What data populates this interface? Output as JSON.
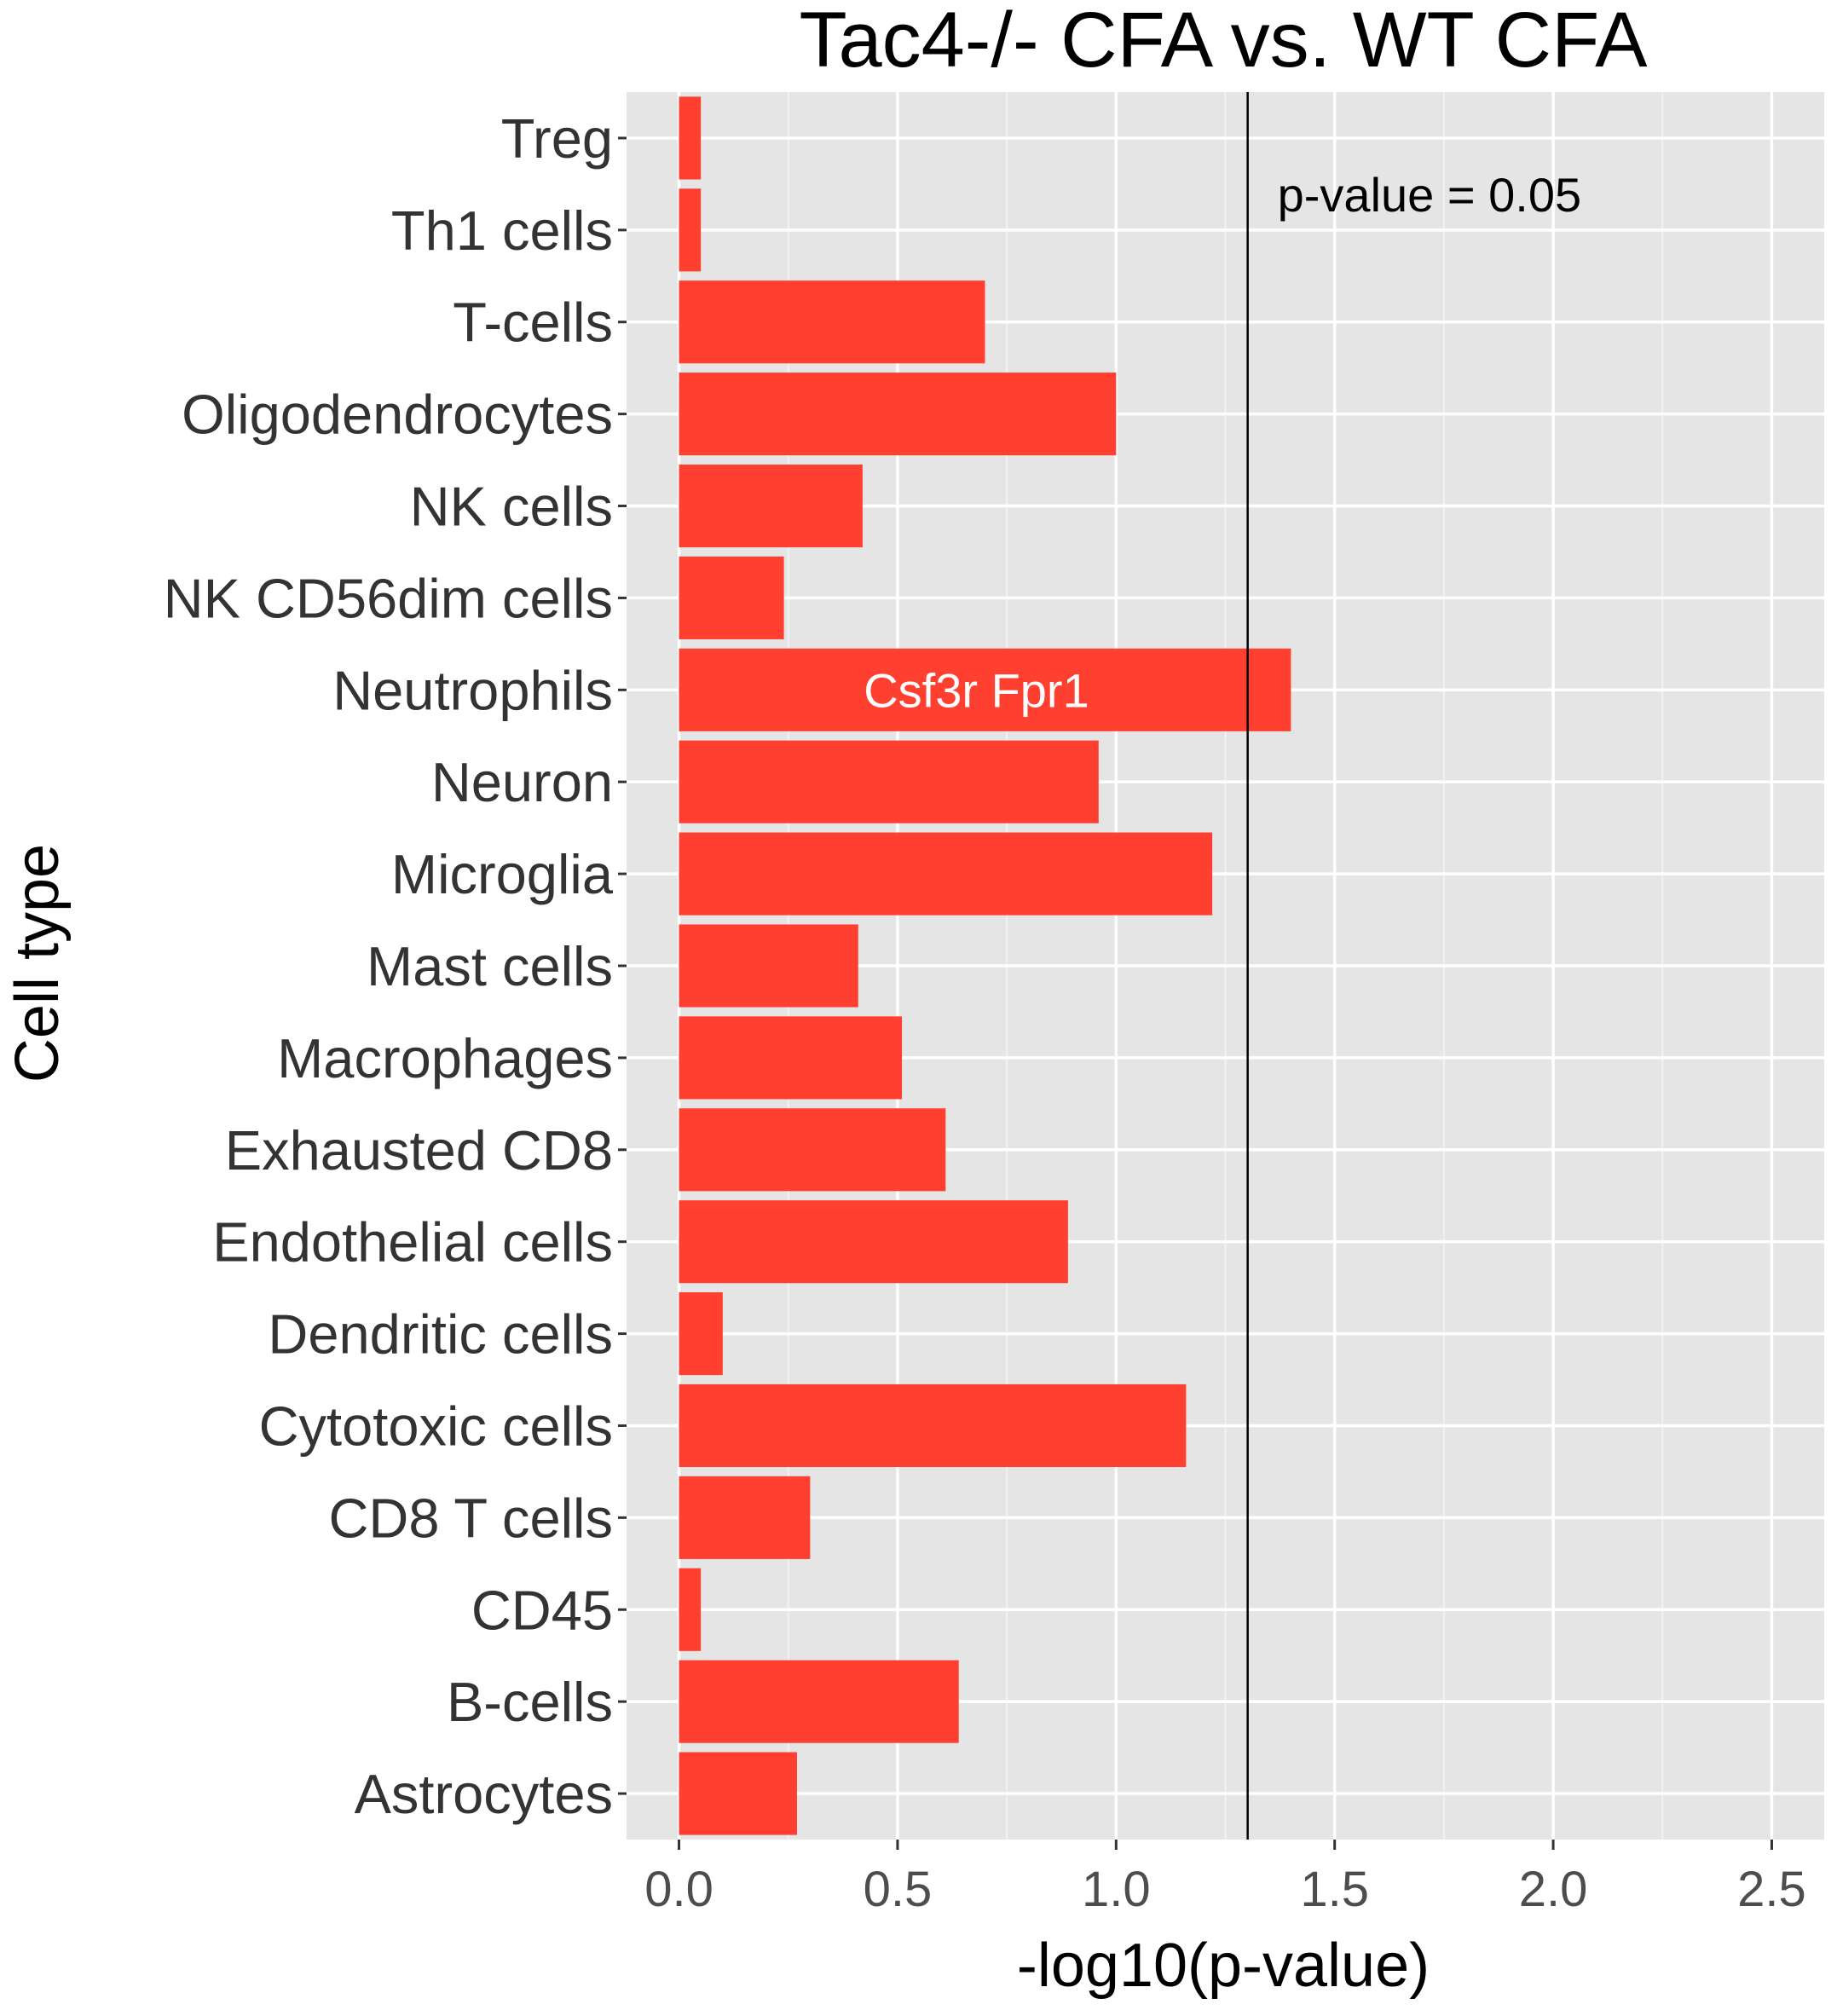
{
  "chart_data": {
    "type": "bar",
    "orientation": "horizontal",
    "title": "Tac4-/- CFA vs. WT CFA",
    "xlabel": "-log10(p-value)",
    "ylabel": "Cell type",
    "xlim": [
      -0.12,
      2.62
    ],
    "xticks": [
      0.0,
      0.5,
      1.0,
      1.5,
      2.0,
      2.5
    ],
    "xtick_labels": [
      "0.0",
      "0.5",
      "1.0",
      "1.5",
      "2.0",
      "2.5"
    ],
    "grid": true,
    "bar_color": "#ff4030",
    "panel_color": "#e5e5e5",
    "categories": [
      "Treg",
      "Th1 cells",
      "T-cells",
      "Oligodendrocytes",
      "NK cells",
      "NK CD56dim cells",
      "Neutrophils",
      "Neuron",
      "Microglia",
      "Mast cells",
      "Macrophages",
      "Exhausted CD8",
      "Endothelial cells",
      "Dendritic cells",
      "Cytotoxic cells",
      "CD8 T cells",
      "CD45",
      "B-cells",
      "Astrocytes"
    ],
    "values": [
      0.05,
      0.05,
      0.7,
      1.0,
      0.42,
      0.24,
      1.4,
      0.96,
      1.22,
      0.41,
      0.51,
      0.61,
      0.89,
      0.1,
      1.16,
      0.3,
      0.05,
      0.64,
      0.27
    ],
    "reference_line": {
      "x": 1.301,
      "label": "p-value = 0.05",
      "color": "#000000"
    },
    "bar_annotations": [
      {
        "category": "Neutrophils",
        "text": "Csf3r  Fpr1"
      }
    ]
  }
}
